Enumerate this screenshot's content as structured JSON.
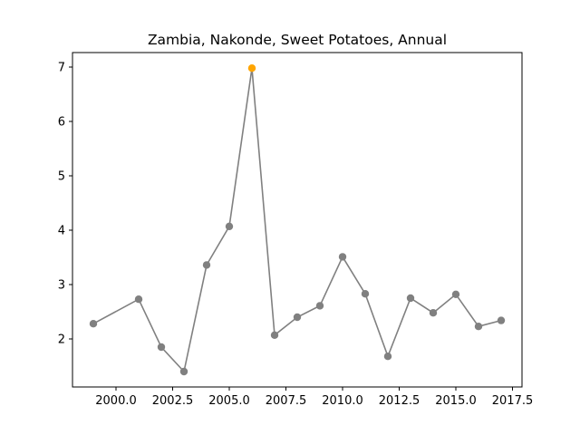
{
  "chart_data": {
    "type": "line",
    "title": "Zambia, Nakonde, Sweet Potatoes, Annual",
    "xlabel": "",
    "ylabel": "",
    "xlim": [
      1999,
      2017
    ],
    "ylim": [
      1.1,
      7.2
    ],
    "x_ticks": [
      2000.0,
      2002.5,
      2005.0,
      2007.5,
      2010.0,
      2012.5,
      2015.0,
      2017.5
    ],
    "x_tick_labels": [
      "2000.0",
      "2002.5",
      "2005.0",
      "2007.5",
      "2010.0",
      "2012.5",
      "2015.0",
      "2017.5"
    ],
    "y_ticks": [
      2,
      3,
      4,
      5,
      6,
      7
    ],
    "y_tick_labels": [
      "2",
      "3",
      "4",
      "5",
      "6",
      "7"
    ],
    "grid": false,
    "line_color": "#808080",
    "highlight_color": "#FFA500",
    "series": [
      {
        "x": [
          1999,
          2001,
          2002,
          2003,
          2004,
          2005,
          2006,
          2007,
          2008,
          2009,
          2010,
          2011,
          2012,
          2013,
          2014,
          2015,
          2016,
          2017
        ],
        "values": [
          2.28,
          2.73,
          1.85,
          1.4,
          3.36,
          4.07,
          6.98,
          2.07,
          2.4,
          2.61,
          3.51,
          2.83,
          1.68,
          2.75,
          2.48,
          2.82,
          2.23,
          2.34
        ],
        "highlight_x": 2006
      }
    ]
  }
}
